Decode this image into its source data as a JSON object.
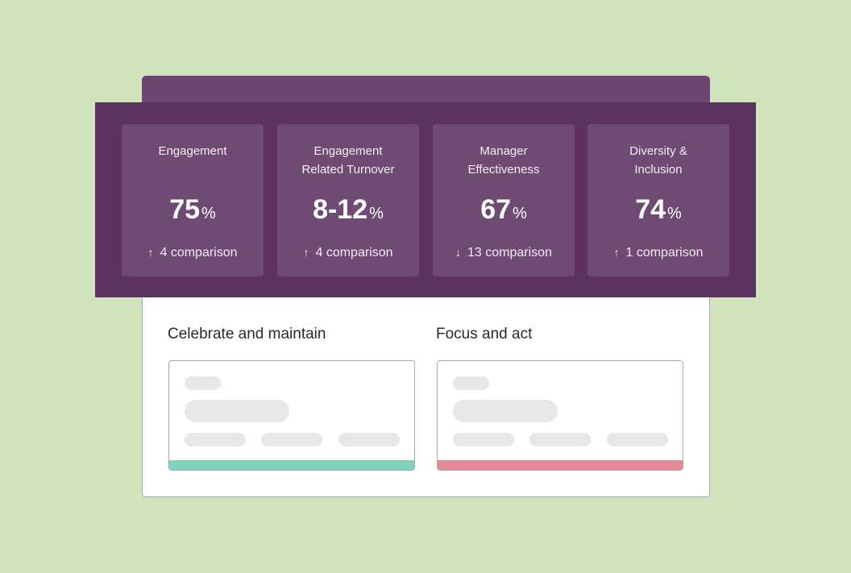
{
  "metrics": [
    {
      "title": "Engagement",
      "value": "75",
      "unit": "%",
      "direction": "↑",
      "change": "4 comparison"
    },
    {
      "title": "Engagement\nRelated Turnover",
      "value": "8-12",
      "unit": "%",
      "direction": "↑",
      "change": "4 comparison"
    },
    {
      "title": "Manager\nEffectiveness",
      "value": "67",
      "unit": "%",
      "direction": "↓",
      "change": "13 comparison"
    },
    {
      "title": "Diversity &\nInclusion",
      "value": "74",
      "unit": "%",
      "direction": "↑",
      "change": "1 comparison"
    }
  ],
  "sections": [
    {
      "heading": "Celebrate and maintain",
      "accent_color": "#7fd3bd"
    },
    {
      "heading": "Focus and act",
      "accent_color": "#e58a95"
    }
  ],
  "colors": {
    "background": "#cfe3bd",
    "band": "#5e325f",
    "card": "#6f4a72"
  }
}
